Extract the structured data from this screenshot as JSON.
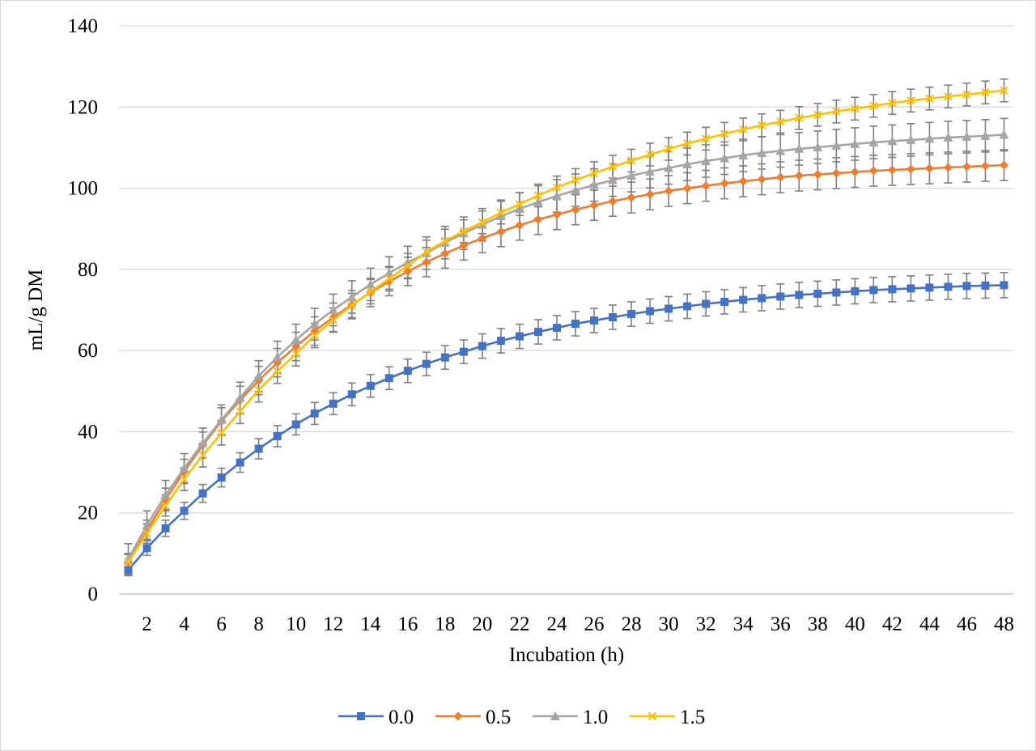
{
  "chart_data": {
    "type": "line",
    "title": "",
    "xlabel": "Incubation (h)",
    "ylabel": "mL/g DM",
    "xlim": [
      0.5,
      48.5
    ],
    "ylim": [
      0,
      140
    ],
    "y_ticks": [
      0,
      20,
      40,
      60,
      80,
      100,
      120,
      140
    ],
    "x_ticks": [
      2,
      4,
      6,
      8,
      10,
      12,
      14,
      16,
      18,
      20,
      22,
      24,
      26,
      28,
      30,
      32,
      34,
      36,
      38,
      40,
      42,
      44,
      46,
      48
    ],
    "grid": "horizontal",
    "legend_position": "bottom",
    "error_bar_color": "#7f7f7f",
    "axis_color": "#bfbfbf",
    "x": [
      1,
      2,
      3,
      4,
      5,
      6,
      7,
      8,
      9,
      10,
      11,
      12,
      13,
      14,
      15,
      16,
      17,
      18,
      19,
      20,
      21,
      22,
      23,
      24,
      25,
      26,
      27,
      28,
      29,
      30,
      31,
      32,
      33,
      34,
      35,
      36,
      37,
      38,
      39,
      40,
      41,
      42,
      43,
      44,
      45,
      46,
      47,
      48
    ],
    "series": [
      {
        "name": "0.0",
        "color": "#4472c4",
        "marker": "square",
        "values": [
          5.9,
          11.3,
          16.2,
          20.5,
          24.8,
          28.7,
          32.4,
          35.8,
          38.9,
          41.8,
          44.5,
          46.9,
          49.2,
          51.3,
          53.2,
          55.0,
          56.7,
          58.3,
          59.7,
          61.1,
          62.4,
          63.5,
          64.6,
          65.6,
          66.6,
          67.4,
          68.2,
          69.0,
          69.7,
          70.3,
          70.9,
          71.5,
          72.0,
          72.5,
          72.9,
          73.3,
          73.7,
          74.0,
          74.3,
          74.6,
          74.9,
          75.1,
          75.3,
          75.5,
          75.7,
          75.9,
          76.0,
          76.1
        ],
        "error": [
          1.4,
          1.8,
          2.0,
          2.1,
          2.2,
          2.3,
          2.4,
          2.5,
          2.6,
          2.6,
          2.7,
          2.7,
          2.8,
          2.8,
          2.8,
          2.9,
          2.9,
          2.9,
          2.9,
          3.0,
          3.0,
          3.0,
          3.0,
          3.0,
          3.0,
          3.0,
          3.0,
          3.0,
          3.0,
          3.0,
          3.0,
          3.0,
          3.0,
          3.0,
          3.1,
          3.1,
          3.1,
          3.1,
          3.1,
          3.1,
          3.1,
          3.1,
          3.1,
          3.1,
          3.1,
          3.1,
          3.1,
          3.1
        ]
      },
      {
        "name": "0.5",
        "color": "#ed7d31",
        "marker": "diamond",
        "values": [
          7.8,
          15.7,
          23.3,
          30.2,
          36.7,
          42.6,
          47.8,
          52.6,
          57.0,
          61.0,
          64.8,
          68.2,
          71.3,
          74.3,
          77.0,
          79.5,
          81.8,
          83.9,
          85.9,
          87.7,
          89.3,
          90.9,
          92.3,
          93.5,
          94.7,
          95.8,
          96.8,
          97.7,
          98.5,
          99.3,
          100.0,
          100.6,
          101.2,
          101.7,
          102.2,
          102.7,
          103.1,
          103.4,
          103.7,
          104.0,
          104.3,
          104.5,
          104.7,
          104.9,
          105.1,
          105.3,
          105.5,
          105.7
        ],
        "error": [
          2.2,
          2.5,
          2.8,
          3.0,
          3.2,
          3.3,
          3.4,
          3.5,
          3.5,
          3.5,
          3.5,
          3.5,
          3.5,
          3.5,
          3.5,
          3.5,
          3.6,
          3.6,
          3.6,
          3.6,
          3.7,
          3.7,
          3.7,
          3.7,
          3.7,
          3.7,
          3.7,
          3.8,
          3.8,
          3.8,
          3.8,
          3.8,
          3.8,
          3.8,
          3.8,
          3.8,
          3.8,
          3.8,
          3.8,
          3.8,
          3.8,
          3.8,
          3.8,
          3.8,
          3.8,
          3.8,
          3.8,
          3.8
        ]
      },
      {
        "name": "1.0",
        "color": "#a5a5a5",
        "marker": "triangle",
        "values": [
          8.6,
          17.0,
          24.4,
          31.0,
          37.2,
          42.9,
          48.4,
          53.7,
          58.4,
          62.6,
          66.5,
          70.0,
          73.2,
          76.3,
          79.1,
          81.7,
          84.0,
          86.6,
          88.9,
          91.0,
          93.1,
          94.9,
          96.6,
          98.1,
          99.5,
          100.8,
          102.0,
          103.1,
          104.1,
          105.0,
          105.9,
          106.7,
          107.4,
          108.1,
          108.7,
          109.2,
          109.7,
          110.1,
          110.5,
          110.9,
          111.3,
          111.6,
          111.9,
          112.2,
          112.5,
          112.7,
          112.9,
          113.2
        ],
        "error": [
          3.8,
          3.5,
          3.6,
          3.6,
          3.7,
          3.7,
          3.8,
          3.8,
          3.9,
          3.9,
          3.9,
          3.9,
          4.0,
          4.0,
          4.0,
          4.0,
          4.0,
          4.0,
          4.0,
          4.0,
          4.0,
          4.0,
          4.0,
          4.0,
          4.0,
          4.0,
          4.0,
          4.0,
          4.0,
          4.0,
          4.0,
          4.0,
          4.0,
          4.0,
          4.0,
          4.0,
          4.0,
          4.0,
          4.0,
          4.0,
          4.0,
          4.0,
          4.0,
          4.0,
          4.0,
          4.0,
          4.0,
          4.0
        ]
      },
      {
        "name": "1.5",
        "color": "#ffc000",
        "marker": "x",
        "values": [
          7.9,
          14.9,
          21.8,
          28.3,
          34.2,
          39.7,
          45.0,
          50.3,
          54.9,
          59.2,
          63.7,
          67.5,
          71.1,
          74.5,
          77.7,
          80.9,
          84.3,
          87.0,
          89.4,
          91.6,
          94.0,
          96.1,
          98.2,
          100.2,
          102.0,
          103.7,
          105.3,
          106.8,
          108.3,
          109.7,
          111.0,
          112.2,
          113.4,
          114.5,
          115.5,
          116.4,
          117.3,
          118.1,
          118.9,
          119.6,
          120.3,
          121.0,
          121.6,
          122.1,
          122.6,
          123.1,
          123.6,
          124.1
        ],
        "error": [
          1.8,
          2.4,
          2.6,
          2.8,
          2.9,
          3.0,
          3.0,
          3.0,
          3.0,
          3.0,
          3.0,
          3.0,
          3.0,
          3.0,
          3.0,
          3.0,
          2.9,
          2.9,
          2.8,
          2.8,
          2.8,
          2.8,
          2.8,
          2.8,
          2.8,
          2.8,
          2.8,
          2.8,
          2.8,
          2.8,
          2.8,
          2.8,
          2.8,
          2.8,
          2.8,
          2.8,
          2.8,
          2.8,
          2.8,
          2.8,
          2.8,
          2.8,
          2.8,
          2.8,
          2.8,
          2.8,
          2.8,
          2.8
        ]
      }
    ]
  }
}
